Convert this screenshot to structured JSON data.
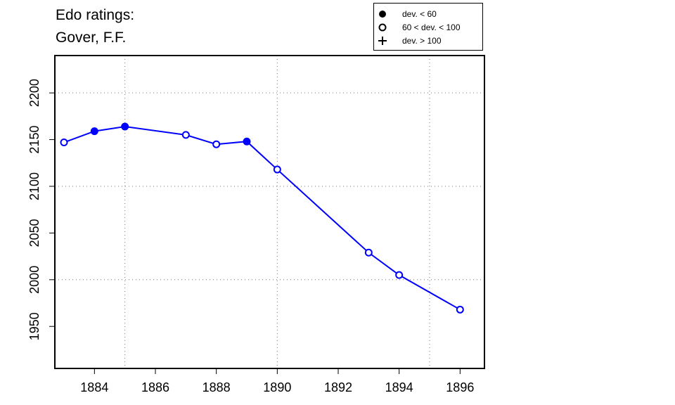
{
  "header": {
    "title_line_1": "Edo ratings:",
    "title_line_2": "Gover, F.F."
  },
  "legend": {
    "items": [
      {
        "symbol": "filled-circle",
        "label": "dev. < 60"
      },
      {
        "symbol": "open-circle",
        "label": "60 < dev. < 100"
      },
      {
        "symbol": "plus",
        "label": "dev. > 100"
      }
    ]
  },
  "chart_data": {
    "type": "line",
    "title": "Edo ratings: Gover, F.F.",
    "xlabel": "",
    "ylabel": "",
    "xlim": [
      1882.7,
      1896.8
    ],
    "ylim": [
      1905,
      2240
    ],
    "x_ticks": [
      1884,
      1886,
      1888,
      1890,
      1892,
      1894,
      1896
    ],
    "y_ticks": [
      1950,
      2000,
      2050,
      2100,
      2150,
      2200
    ],
    "grid_x": [
      1885,
      1890,
      1895
    ],
    "grid_y": [
      2000,
      2100,
      2200
    ],
    "grid": true,
    "line_color": "#0000ff",
    "legend_position": "top-right",
    "series": [
      {
        "x": [
          1883,
          1884,
          1885,
          1887,
          1888,
          1889,
          1890,
          1893,
          1894,
          1896
        ],
        "y": [
          2147,
          2159,
          2164,
          2155,
          2145,
          2148,
          2118,
          2029,
          2005,
          1968
        ],
        "markers": [
          "open",
          "filled",
          "filled",
          "open",
          "open",
          "filled",
          "open",
          "open",
          "open",
          "open"
        ]
      }
    ]
  }
}
